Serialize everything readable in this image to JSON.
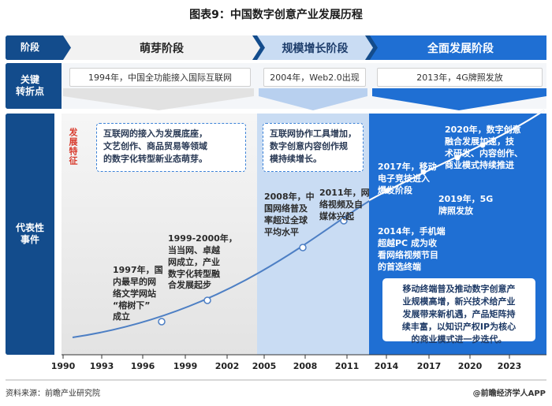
{
  "title": "图表9：中国数字创意产业发展历程",
  "rows": {
    "stage_label": "阶段",
    "turning_label": "关键\n转折点",
    "events_label": "代表性\n事件"
  },
  "phases": [
    {
      "name": "萌芽阶段",
      "milestone": "1994年，中国全功能接入国际互联网"
    },
    {
      "name": "规模增长阶段",
      "milestone": "2004年，Web2.0出现"
    },
    {
      "name": "全面发展阶段",
      "milestone": "2013年，4G牌照发放"
    }
  ],
  "features_label": "发展特征",
  "features": [
    "互联网的接入为发展底座，\n文艺创作、商品贸易等领域\n的数字化转型新业态萌芽。",
    "互联网协作工具增加，\n数字创意内容创作规\n模持续增长。"
  ],
  "events": [
    {
      "text": "1997年，国\n内最早的网\n络文学网站\n“榕树下”\n成立"
    },
    {
      "text": "1999-2000年，\n当当网、卓越\n网成立，产业\n数字化转型融\n合发展起步"
    },
    {
      "text": "2008年，中\n国网络普及\n率超过全球\n平均水平"
    },
    {
      "text": "2011年，网\n络视频及自\n媒体兴起"
    },
    {
      "text": "2014年，手机端\n超越PC 成为收\n看网络视频节目\n的首选终端"
    },
    {
      "text": "2017年，移动\n电子竞技进入\n爆发阶段"
    },
    {
      "text": "2019年，5G\n牌照发放"
    },
    {
      "text": "2020年，数字创意\n融合发展加速，技\n术研发、内容创作、\n商业模式持续推进"
    }
  ],
  "summary": "移动终端普及推动数字创意产\n业规模高增，新兴技术给产业\n发展带来新机遇，产品矩阵持\n续丰富，以知识产权IP为核心\n的商业模式进一步迭代。",
  "axis": {
    "ticks": [
      "1990",
      "1993",
      "1996",
      "1999",
      "2002",
      "2005",
      "2008",
      "2011",
      "2014",
      "2017",
      "2020",
      "2023"
    ]
  },
  "footer": {
    "source": "资料来源：前瞻产业研究院",
    "brand": "@前瞻经济学人APP"
  },
  "colors": {
    "navy": "#134c8c",
    "phase3": "#1f6fd3",
    "phase2": "#c9dcf3",
    "phase1": "#ececec"
  }
}
